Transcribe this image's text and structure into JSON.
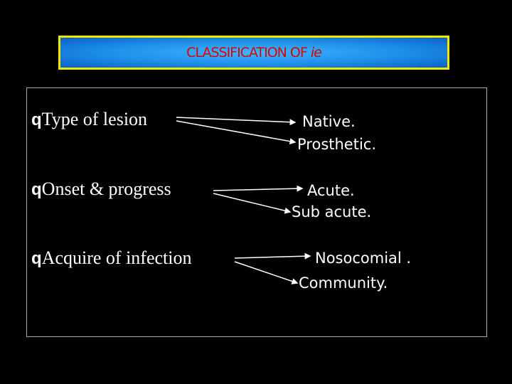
{
  "title": {
    "text": "CLASSIFICATION OF",
    "suffix": "ie"
  },
  "items": [
    {
      "marker": "q",
      "label": "Type of lesion",
      "options": [
        "Native.",
        "Prosthetic."
      ]
    },
    {
      "marker": "q",
      "label": "Onset & progress",
      "options": [
        "Acute.",
        "Sub acute."
      ]
    },
    {
      "marker": "q",
      "label": "Acquire of infection",
      "options": [
        "Nosocomial .",
        "Community."
      ]
    }
  ]
}
